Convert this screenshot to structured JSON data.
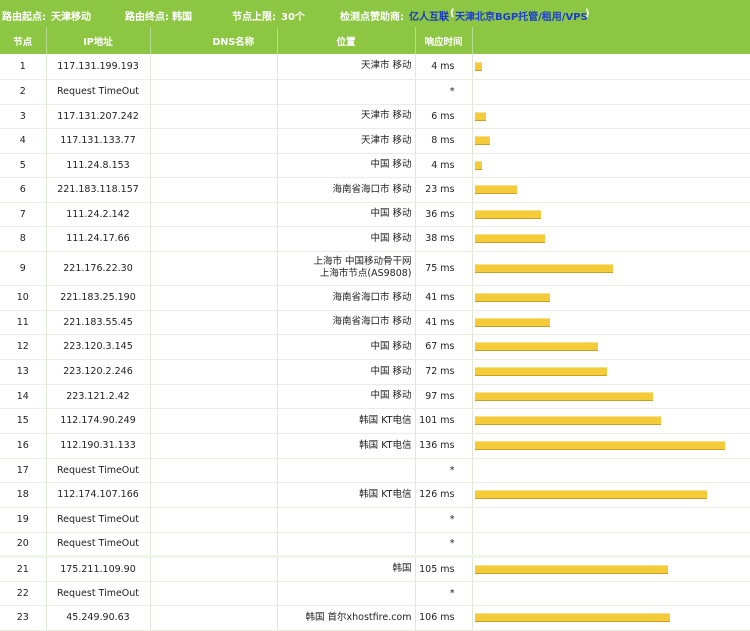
{
  "header": {
    "origin_label": "路由起点:",
    "origin_value": "天津移动",
    "dest_label": "路由终点:",
    "dest_value": "韩国",
    "limit_label": "节点上限:",
    "limit_value": "30个",
    "sponsor_label": "检测点赞助商:",
    "sponsor_name": "亿人互联",
    "sponsor_paren_open": "(",
    "sponsor_desc": "天津北京BGP托管/租用/VPS",
    "sponsor_paren_close": ")"
  },
  "columns": {
    "hop": "节点",
    "ip": "IP地址",
    "dns": "DNS名称",
    "location": "位置",
    "rtt": "响应时间",
    "chart": ""
  },
  "max_ms": 136,
  "rows": [
    {
      "hop": "1",
      "ip": "117.131.199.193",
      "dns": "",
      "location": "天津市 移动",
      "location2": "",
      "rtt": "4 ms",
      "ms": 4
    },
    {
      "hop": "2",
      "ip": "Request TimeOut",
      "dns": "",
      "location": "",
      "location2": "",
      "rtt": "*",
      "ms": 0
    },
    {
      "hop": "3",
      "ip": "117.131.207.242",
      "dns": "",
      "location": "天津市 移动",
      "location2": "",
      "rtt": "6 ms",
      "ms": 6
    },
    {
      "hop": "4",
      "ip": "117.131.133.77",
      "dns": "",
      "location": "天津市 移动",
      "location2": "",
      "rtt": "8 ms",
      "ms": 8
    },
    {
      "hop": "5",
      "ip": "111.24.8.153",
      "dns": "",
      "location": "中国 移动",
      "location2": "",
      "rtt": "4 ms",
      "ms": 4
    },
    {
      "hop": "6",
      "ip": "221.183.118.157",
      "dns": "",
      "location": "海南省海口市 移动",
      "location2": "",
      "rtt": "23 ms",
      "ms": 23
    },
    {
      "hop": "7",
      "ip": "111.24.2.142",
      "dns": "",
      "location": "中国 移动",
      "location2": "",
      "rtt": "36 ms",
      "ms": 36
    },
    {
      "hop": "8",
      "ip": "111.24.17.66",
      "dns": "",
      "location": "中国 移动",
      "location2": "",
      "rtt": "38 ms",
      "ms": 38
    },
    {
      "hop": "9",
      "ip": "221.176.22.30",
      "dns": "",
      "location": "上海市 中国移动骨干网",
      "location2": "上海市节点(AS9808)",
      "rtt": "75 ms",
      "ms": 75
    },
    {
      "hop": "10",
      "ip": "221.183.25.190",
      "dns": "",
      "location": "海南省海口市 移动",
      "location2": "",
      "rtt": "41 ms",
      "ms": 41
    },
    {
      "hop": "11",
      "ip": "221.183.55.45",
      "dns": "",
      "location": "海南省海口市 移动",
      "location2": "",
      "rtt": "41 ms",
      "ms": 41
    },
    {
      "hop": "12",
      "ip": "223.120.3.145",
      "dns": "",
      "location": "中国 移动",
      "location2": "",
      "rtt": "67 ms",
      "ms": 67
    },
    {
      "hop": "13",
      "ip": "223.120.2.246",
      "dns": "",
      "location": "中国 移动",
      "location2": "",
      "rtt": "72 ms",
      "ms": 72
    },
    {
      "hop": "14",
      "ip": "223.121.2.42",
      "dns": "",
      "location": "中国 移动",
      "location2": "",
      "rtt": "97 ms",
      "ms": 97
    },
    {
      "hop": "15",
      "ip": "112.174.90.249",
      "dns": "",
      "location": "韩国 KT电信",
      "location2": "",
      "rtt": "101 ms",
      "ms": 101
    },
    {
      "hop": "16",
      "ip": "112.190.31.133",
      "dns": "",
      "location": "韩国 KT电信",
      "location2": "",
      "rtt": "136 ms",
      "ms": 136
    },
    {
      "hop": "17",
      "ip": "Request TimeOut",
      "dns": "",
      "location": "",
      "location2": "",
      "rtt": "*",
      "ms": 0
    },
    {
      "hop": "18",
      "ip": "112.174.107.166",
      "dns": "",
      "location": "韩国 KT电信",
      "location2": "",
      "rtt": "126 ms",
      "ms": 126
    },
    {
      "hop": "19",
      "ip": "Request TimeOut",
      "dns": "",
      "location": "",
      "location2": "",
      "rtt": "*",
      "ms": 0
    },
    {
      "hop": "20",
      "ip": "Request TimeOut",
      "dns": "",
      "location": "",
      "location2": "",
      "rtt": "*",
      "ms": 0
    },
    {
      "hop": "21",
      "ip": "175.211.109.90",
      "dns": "",
      "location": "韩国",
      "location2": "",
      "rtt": "105 ms",
      "ms": 105
    },
    {
      "hop": "22",
      "ip": "Request TimeOut",
      "dns": "",
      "location": "",
      "location2": "",
      "rtt": "*",
      "ms": 0
    },
    {
      "hop": "23",
      "ip": "45.249.90.63",
      "dns": "",
      "location": "韩国 首尔xhostfire.com",
      "location2": "",
      "rtt": "106 ms",
      "ms": 106
    }
  ],
  "colors": {
    "header_green": "#8dc643",
    "bar_yellow": "#f4cc3a",
    "link_blue": "#1436c8"
  }
}
